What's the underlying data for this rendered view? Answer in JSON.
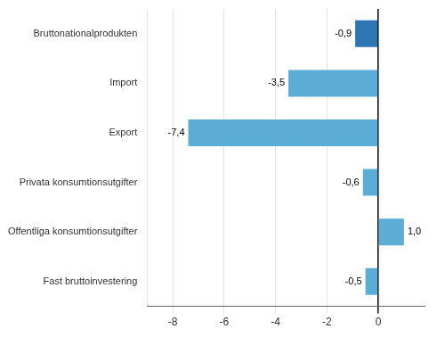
{
  "chart_data": {
    "type": "bar",
    "orientation": "horizontal",
    "categories": [
      "Bruttonationalprodukten",
      "Import",
      "Export",
      "Privata konsumtionsutgifter",
      "Offentliga konsumtionsutgifter",
      "Fast bruttoinvestering"
    ],
    "values": [
      -0.9,
      -3.5,
      -7.4,
      -0.6,
      1.0,
      -0.5
    ],
    "value_labels": [
      "-0,9",
      "-3,5",
      "-7,4",
      "-0,6",
      "1,0",
      "-0,5"
    ],
    "colors": [
      "#2e75b6",
      "#5badd6",
      "#5badd6",
      "#5badd6",
      "#5badd6",
      "#5badd6"
    ],
    "xlim": [
      -9.0,
      1.8
    ],
    "xticks": [
      -8,
      -6,
      -4,
      -2,
      0
    ],
    "grid": true,
    "data_labels": true
  }
}
